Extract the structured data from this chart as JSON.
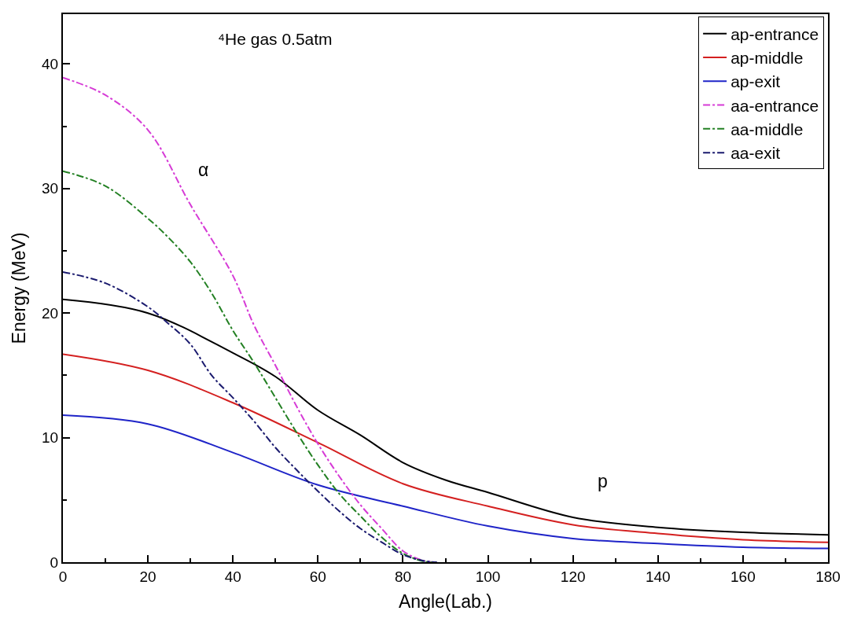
{
  "chart_data": {
    "type": "line",
    "xlabel": "Angle(Lab.)",
    "ylabel": "Energy (MeV)",
    "xlim": [
      0,
      180
    ],
    "xticks": [
      0,
      20,
      40,
      60,
      80,
      100,
      120,
      140,
      160,
      180
    ],
    "ylim": [
      0,
      44
    ],
    "yticks": [
      0,
      10,
      20,
      30,
      40
    ],
    "grid": false,
    "legend": "top right",
    "marker": "none",
    "annotations": [
      "⁴He gas 0.5atm",
      "α",
      "p"
    ],
    "series": [
      {
        "name": "ap-entrance",
        "color": "#000000",
        "line_style": "solid",
        "x": [
          0,
          20,
          40,
          50,
          60,
          70,
          80,
          90,
          100,
          120,
          140,
          160,
          180
        ],
        "values": [
          21.1,
          20.0,
          16.8,
          14.9,
          12.2,
          10.2,
          8.0,
          6.6,
          5.6,
          3.6,
          2.8,
          2.4,
          2.2
        ]
      },
      {
        "name": "ap-middle",
        "color": "#d42020",
        "line_style": "solid",
        "x": [
          0,
          20,
          40,
          60,
          80,
          100,
          120,
          140,
          160,
          180
        ],
        "values": [
          16.7,
          15.4,
          12.8,
          9.6,
          6.3,
          4.5,
          3.0,
          2.3,
          1.8,
          1.6
        ]
      },
      {
        "name": "ap-exit",
        "color": "#1f24c8",
        "line_style": "solid",
        "x": [
          0,
          20,
          40,
          60,
          80,
          100,
          120,
          140,
          160,
          180
        ],
        "values": [
          11.8,
          11.1,
          8.8,
          6.2,
          4.5,
          2.9,
          1.9,
          1.5,
          1.2,
          1.1
        ]
      },
      {
        "name": "aa-entrance",
        "color": "#d63bd6",
        "line_style": "dashdot",
        "x": [
          0,
          10,
          20,
          30,
          40,
          45,
          50,
          55,
          60,
          65,
          70,
          75,
          80,
          85,
          88
        ],
        "values": [
          38.9,
          37.5,
          34.7,
          28.7,
          23.0,
          19.0,
          15.8,
          12.5,
          9.5,
          6.9,
          4.6,
          2.7,
          0.9,
          0.1,
          0
        ]
      },
      {
        "name": "aa-middle",
        "color": "#238023",
        "line_style": "dashdot",
        "x": [
          0,
          10,
          20,
          25,
          30,
          35,
          40,
          45,
          50,
          55,
          60,
          65,
          70,
          75,
          80,
          85,
          87
        ],
        "values": [
          31.4,
          30.2,
          27.6,
          26.0,
          24.1,
          21.6,
          18.6,
          16.0,
          13.2,
          10.4,
          7.8,
          5.5,
          3.7,
          2.0,
          0.7,
          0.05,
          0
        ]
      },
      {
        "name": "aa-exit",
        "color": "#1a1a6e",
        "line_style": "dashdot",
        "x": [
          0,
          10,
          20,
          25,
          30,
          35,
          40,
          45,
          50,
          55,
          60,
          65,
          70,
          75,
          80,
          85,
          88
        ],
        "values": [
          23.3,
          22.4,
          20.5,
          19.1,
          17.5,
          15.0,
          13.2,
          11.3,
          9.2,
          7.4,
          5.7,
          4.1,
          2.7,
          1.6,
          0.6,
          0.1,
          0
        ]
      }
    ]
  }
}
